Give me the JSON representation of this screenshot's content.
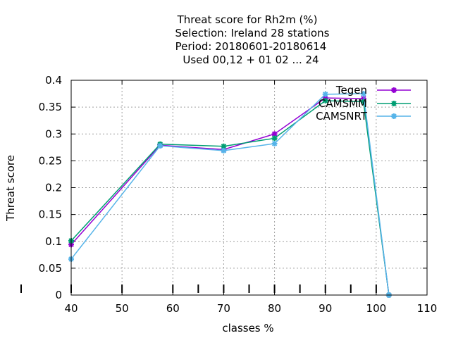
{
  "chart_data": {
    "type": "line",
    "title_lines": [
      "Threat score  for Rh2m (%)",
      "Selection: Ireland      28 stations",
      "Period: 20180601-20180614",
      "Used  00,12  + 01 02 ... 24"
    ],
    "xlabel": "classes %",
    "ylabel": "Threat score",
    "xlim": [
      40,
      110
    ],
    "ylim": [
      0,
      0.4
    ],
    "xticks": [
      40,
      50,
      60,
      70,
      80,
      90,
      100,
      110
    ],
    "yticks": [
      0,
      0.05,
      0.1,
      0.15,
      0.2,
      0.25,
      0.3,
      0.35,
      0.4
    ],
    "xtick_labels": [
      "40",
      "50",
      "60",
      "70",
      "80",
      "90",
      "100",
      "110"
    ],
    "ytick_labels": [
      "0",
      "0.05",
      "0.1",
      "0.15",
      "0.2",
      "0.25",
      "0.3",
      "0.35",
      "0.4"
    ],
    "grid": true,
    "legend_position": "top-right",
    "series": [
      {
        "name": "Tegen",
        "color": "#9400d3",
        "x": [
          40,
          57.5,
          70,
          80,
          90,
          97.5,
          102.5
        ],
        "y": [
          0.094,
          0.279,
          0.271,
          0.3,
          0.367,
          0.366,
          0.0
        ]
      },
      {
        "name": "CAMSMM",
        "color": "#009e73",
        "x": [
          40,
          57.5,
          70,
          80,
          90,
          97.5,
          102.5
        ],
        "y": [
          0.101,
          0.281,
          0.277,
          0.292,
          0.362,
          0.36,
          0.0
        ]
      },
      {
        "name": "CAMSNRT",
        "color": "#56b4e9",
        "x": [
          40,
          57.5,
          70,
          80,
          90,
          97.5,
          102.5
        ],
        "y": [
          0.067,
          0.278,
          0.269,
          0.282,
          0.374,
          0.375,
          0.0
        ]
      }
    ],
    "bottom_marks_x": [
      40,
      50,
      60,
      65,
      70,
      75,
      80,
      85,
      90,
      95,
      100
    ]
  }
}
